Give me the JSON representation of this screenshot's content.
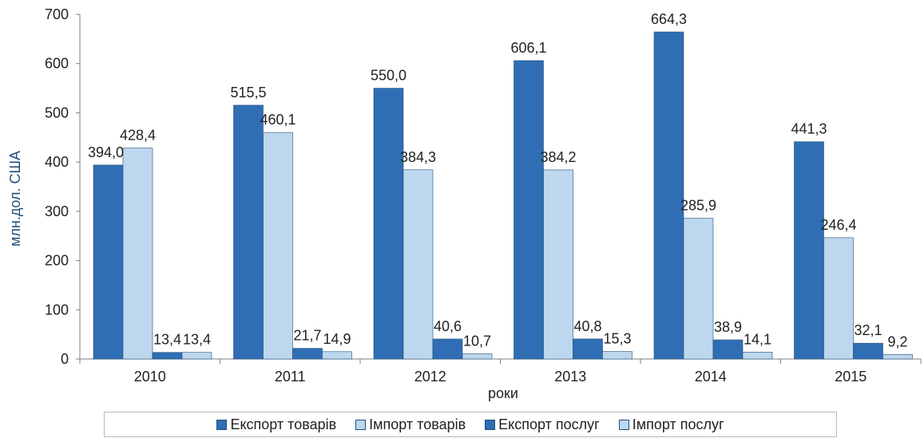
{
  "chart_data": {
    "type": "bar",
    "categories": [
      "2010",
      "2011",
      "2012",
      "2013",
      "2014",
      "2015"
    ],
    "series": [
      {
        "name": "Експорт товарів",
        "color": "#2f6eb4",
        "values": [
          394.0,
          515.5,
          550.0,
          606.1,
          664.3,
          441.3
        ],
        "labels": [
          "394,0",
          "515,5",
          "550,0",
          "606,1",
          "664,3",
          "441,3"
        ]
      },
      {
        "name": "Імпорт товарів",
        "color": "#bdd7ee",
        "values": [
          428.4,
          460.1,
          384.3,
          384.2,
          285.9,
          246.4
        ],
        "labels": [
          "428,4",
          "460,1",
          "384,3",
          "384,2",
          "285,9",
          "246,4"
        ]
      },
      {
        "name": "Експорт послуг",
        "color": "#2f6eb4",
        "values": [
          13.4,
          21.7,
          40.6,
          40.8,
          38.9,
          32.1
        ],
        "labels": [
          "13,4",
          "21,7",
          "40,6",
          "40,8",
          "38,9",
          "32,1"
        ]
      },
      {
        "name": "Імпорт послуг",
        "color": "#bdd7ee",
        "values": [
          13.4,
          14.9,
          10.7,
          15.3,
          14.1,
          9.2
        ],
        "labels": [
          "13,4",
          "14,9",
          "10,7",
          "15,3",
          "14,1",
          "9,2"
        ]
      }
    ],
    "xlabel": "роки",
    "ylabel": "млн.дол. США",
    "ylim": [
      0,
      700
    ],
    "yticks": [
      "0",
      "100",
      "200",
      "300",
      "400",
      "500",
      "600",
      "700"
    ],
    "grid": false,
    "legend_position": "bottom"
  }
}
